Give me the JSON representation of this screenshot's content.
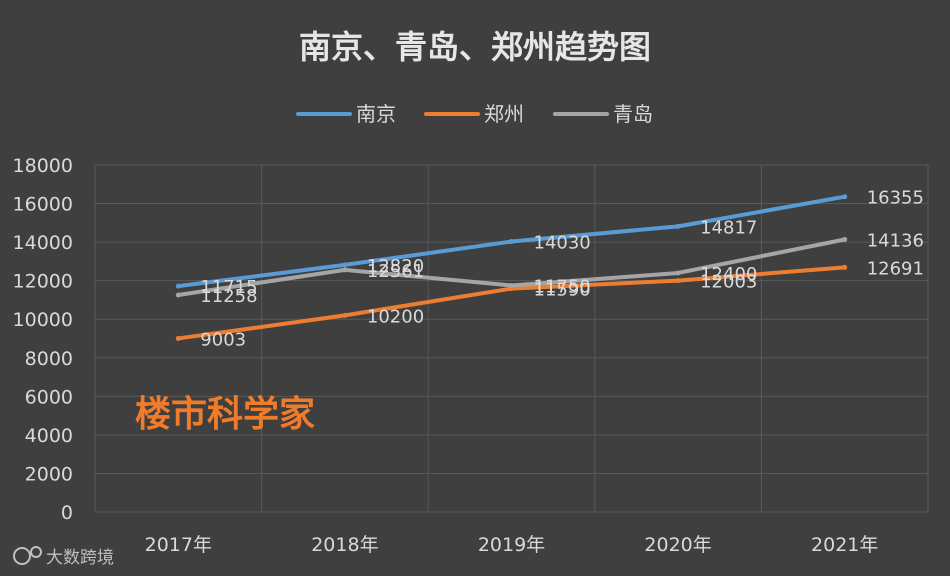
{
  "chart_data": {
    "type": "line",
    "title": "南京、青岛、郑州趋势图",
    "categories": [
      "2017年",
      "2018年",
      "2019年",
      "2020年",
      "2021年"
    ],
    "ylim": [
      0,
      18000
    ],
    "yticks": [
      0,
      2000,
      4000,
      6000,
      8000,
      10000,
      12000,
      14000,
      16000,
      18000
    ],
    "grid": true,
    "legend_position": "top",
    "series": [
      {
        "name": "南京",
        "color": "#5b9bd5",
        "values": [
          11715,
          12820,
          14030,
          14817,
          16355
        ]
      },
      {
        "name": "郑州",
        "color": "#ed7d31",
        "values": [
          9003,
          10200,
          11590,
          12003,
          12691
        ]
      },
      {
        "name": "青岛",
        "color": "#a5a5a5",
        "values": [
          11258,
          12561,
          11750,
          12400,
          14136
        ]
      }
    ]
  },
  "watermark": "楼市科学家",
  "brand": {
    "text": "大数跨境",
    "icon": "brand-logo-icon"
  }
}
